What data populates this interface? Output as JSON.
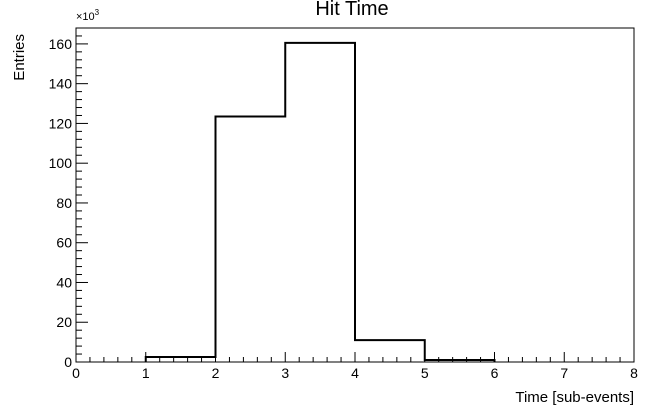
{
  "chart_data": {
    "type": "bar",
    "title": "Hit Time",
    "xlabel": "Time [sub-events]",
    "ylabel": "Entries",
    "y_multiplier_label": "×10",
    "y_multiplier_exp": "3",
    "xlim": [
      0,
      8
    ],
    "ylim": [
      0,
      168
    ],
    "x_ticks": [
      0,
      1,
      2,
      3,
      4,
      5,
      6,
      7,
      8
    ],
    "y_ticks": [
      0,
      20,
      40,
      60,
      80,
      100,
      120,
      140,
      160
    ],
    "bin_edges": [
      1,
      2,
      3,
      4,
      5,
      6
    ],
    "values": [
      2.5,
      123.5,
      160.5,
      11,
      1
    ],
    "grid": false,
    "legend": "none"
  }
}
